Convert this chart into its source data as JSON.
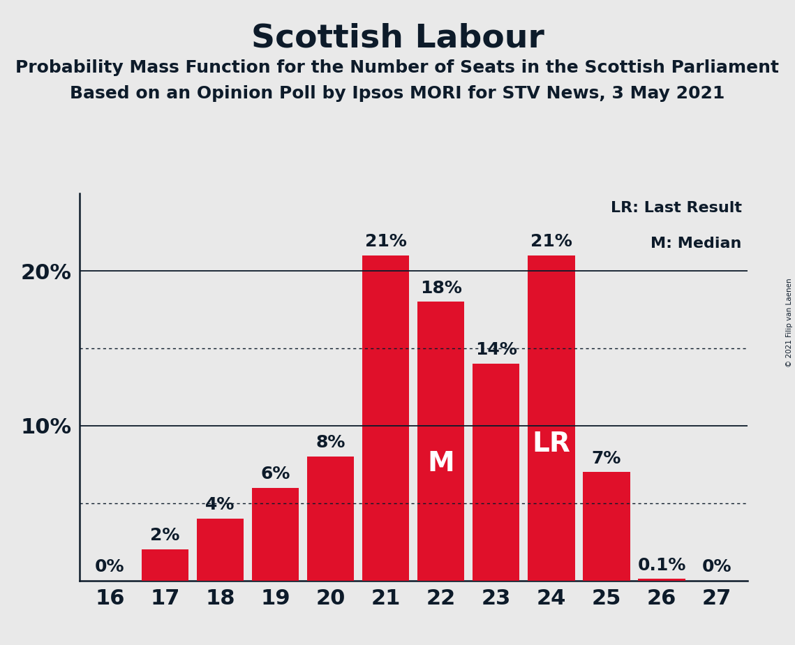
{
  "title": "Scottish Labour",
  "subtitle1": "Probability Mass Function for the Number of Seats in the Scottish Parliament",
  "subtitle2": "Based on an Opinion Poll by Ipsos MORI for STV News, 3 May 2021",
  "copyright": "© 2021 Filip van Laenen",
  "categories": [
    16,
    17,
    18,
    19,
    20,
    21,
    22,
    23,
    24,
    25,
    26,
    27
  ],
  "values": [
    0.0,
    2.0,
    4.0,
    6.0,
    8.0,
    21.0,
    18.0,
    14.0,
    21.0,
    7.0,
    0.1,
    0.0
  ],
  "bar_labels": [
    "0%",
    "2%",
    "4%",
    "6%",
    "8%",
    "21%",
    "18%",
    "14%",
    "21%",
    "7%",
    "0.1%",
    "0%"
  ],
  "bar_color": "#e0102a",
  "background_color": "#e9e9e9",
  "text_color": "#0d1b2a",
  "ylim": [
    0,
    25
  ],
  "solid_lines": [
    10,
    20
  ],
  "dotted_lines": [
    5,
    15
  ],
  "median_bar": 22,
  "lr_bar": 24,
  "legend_text1": "LR: Last Result",
  "legend_text2": "M: Median",
  "title_fontsize": 34,
  "subtitle_fontsize": 18,
  "axis_fontsize": 22,
  "bar_label_fontsize": 18,
  "marker_fontsize": 28,
  "legend_fontsize": 16
}
